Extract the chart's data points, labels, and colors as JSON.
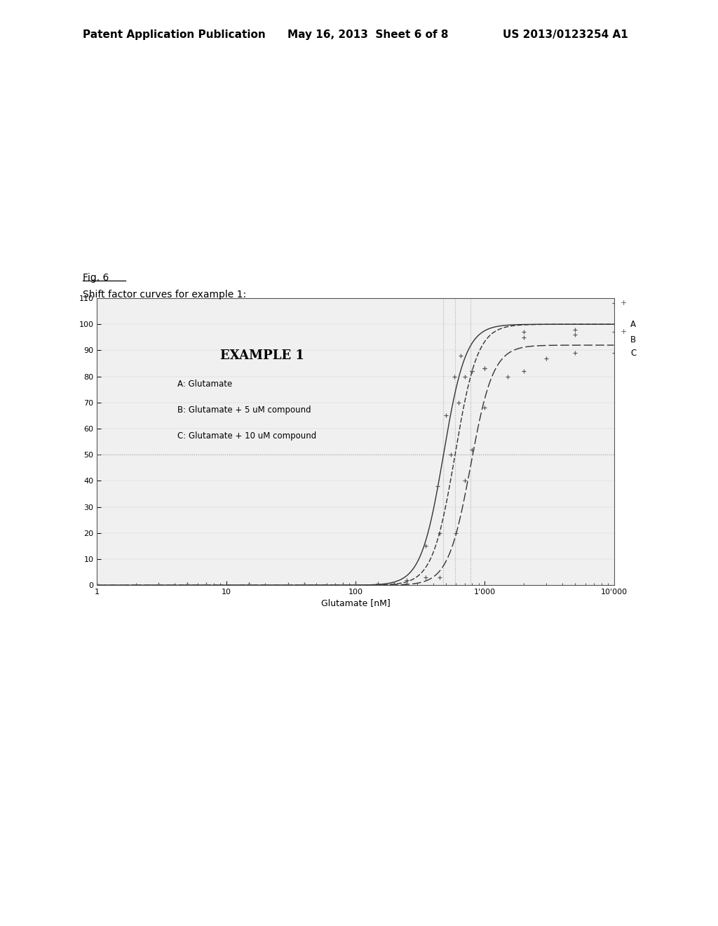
{
  "title_text": "EXAMPLE 1",
  "fig_label": "Fig. 6",
  "subtitle": "Shift factor curves for example 1:",
  "header_left": "Patent Application Publication",
  "header_mid": "May 16, 2013  Sheet 6 of 8",
  "header_right": "US 2013/0123254 A1",
  "xlabel": "Glutamate [nM]",
  "ylim": [
    0,
    110
  ],
  "yticks": [
    0,
    10,
    20,
    30,
    40,
    50,
    60,
    70,
    80,
    90,
    100,
    110
  ],
  "xtick_vals": [
    1,
    10,
    100,
    1000,
    10000
  ],
  "xtick_labels": [
    "1",
    "10",
    "100",
    "1'000",
    "10'000"
  ],
  "curve_A_ec50": 480,
  "curve_B_ec50": 590,
  "curve_C_ec50": 780,
  "hill": 5.0,
  "top_A": 100,
  "top_B": 100,
  "top_C": 92,
  "legend_A": "A: Glutamate",
  "legend_B": "B: Glutamate + 5 uM compound",
  "legend_C": "C: Glutamate + 10 uM compound",
  "bg_color": "#ffffff",
  "plot_bg": "#f0f0f0",
  "curve_color": "#333333",
  "dot_color": "#555555",
  "dotted_color": "#aaaaaa",
  "data_points_A": [
    [
      1,
      0.3
    ],
    [
      3,
      0.3
    ],
    [
      7,
      0.3
    ],
    [
      15,
      0.3
    ],
    [
      30,
      0.3
    ],
    [
      80,
      0.4
    ],
    [
      150,
      0.5
    ],
    [
      250,
      2.0
    ],
    [
      350,
      15.0
    ],
    [
      430,
      38.0
    ],
    [
      500,
      65.0
    ],
    [
      580,
      80.0
    ],
    [
      650,
      88.0
    ],
    [
      800,
      82.0
    ],
    [
      1000,
      83.0
    ],
    [
      2000,
      97.0
    ],
    [
      5000,
      98.0
    ],
    [
      10000,
      108.0
    ]
  ],
  "data_points_B": [
    [
      1,
      0.2
    ],
    [
      5,
      0.2
    ],
    [
      15,
      0.2
    ],
    [
      40,
      0.3
    ],
    [
      100,
      0.4
    ],
    [
      200,
      0.5
    ],
    [
      350,
      3.0
    ],
    [
      450,
      20.0
    ],
    [
      550,
      50.0
    ],
    [
      630,
      70.0
    ],
    [
      700,
      80.0
    ],
    [
      800,
      82.0
    ],
    [
      1000,
      83.0
    ],
    [
      2000,
      95.0
    ],
    [
      5000,
      96.0
    ],
    [
      10000,
      97.0
    ]
  ],
  "data_points_C": [
    [
      1,
      0.2
    ],
    [
      5,
      0.2
    ],
    [
      15,
      0.2
    ],
    [
      40,
      0.2
    ],
    [
      100,
      0.3
    ],
    [
      250,
      0.5
    ],
    [
      450,
      3.0
    ],
    [
      600,
      20.0
    ],
    [
      700,
      40.0
    ],
    [
      800,
      52.0
    ],
    [
      1000,
      68.0
    ],
    [
      1500,
      80.0
    ],
    [
      2000,
      82.0
    ],
    [
      3000,
      87.0
    ],
    [
      5000,
      89.0
    ],
    [
      10000,
      89.0
    ]
  ]
}
